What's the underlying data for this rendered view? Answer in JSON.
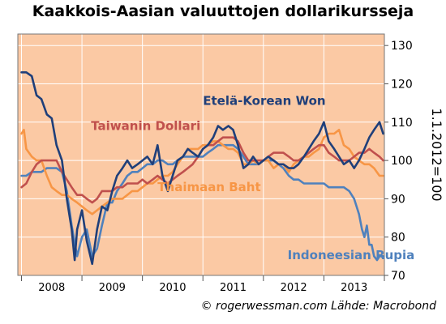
{
  "chart_data": {
    "type": "line",
    "title": "Kaakkois-Aasian valuuttojen dollarikursseja",
    "ylabel": "1.1.2012=100",
    "ylim": [
      70,
      133
    ],
    "xlim": [
      2007.94,
      2014.0
    ],
    "yticks": [
      70,
      80,
      90,
      100,
      110,
      120,
      130
    ],
    "xtick_labels": [
      "2008",
      "2009",
      "2010",
      "2011",
      "2012",
      "2013"
    ],
    "xtick_centers": [
      2008.5,
      2009.5,
      2010.5,
      2011.5,
      2012.5,
      2013.5
    ],
    "grid": true,
    "plot_background": "#fbc9a4",
    "series": [
      {
        "name": "Etelä-Korean Won",
        "color": "#1f3f7a",
        "x": [
          2008.0,
          2008.08,
          2008.17,
          2008.25,
          2008.33,
          2008.42,
          2008.5,
          2008.58,
          2008.67,
          2008.75,
          2008.83,
          2008.88,
          2008.92,
          2009.0,
          2009.08,
          2009.17,
          2009.25,
          2009.33,
          2009.42,
          2009.5,
          2009.58,
          2009.67,
          2009.75,
          2009.83,
          2009.92,
          2010.0,
          2010.08,
          2010.17,
          2010.25,
          2010.33,
          2010.42,
          2010.5,
          2010.58,
          2010.67,
          2010.75,
          2010.83,
          2010.92,
          2011.0,
          2011.08,
          2011.17,
          2011.25,
          2011.33,
          2011.42,
          2011.5,
          2011.58,
          2011.67,
          2011.75,
          2011.83,
          2011.92,
          2012.0,
          2012.08,
          2012.17,
          2012.25,
          2012.33,
          2012.42,
          2012.5,
          2012.58,
          2012.67,
          2012.75,
          2012.83,
          2012.92,
          2013.0,
          2013.08,
          2013.17,
          2013.25,
          2013.33,
          2013.42,
          2013.5,
          2013.58,
          2013.67,
          2013.75,
          2013.83,
          2013.92,
          2013.98
        ],
        "y": [
          123,
          123,
          122,
          117,
          116,
          112,
          111,
          104,
          100,
          90,
          82,
          74,
          82,
          87,
          79,
          73,
          82,
          88,
          87,
          92,
          96,
          98,
          100,
          98,
          99,
          100,
          101,
          99,
          104,
          96,
          92,
          96,
          100,
          101,
          103,
          102,
          101,
          103,
          104,
          106,
          109,
          108,
          109,
          108,
          104,
          98,
          99,
          101,
          99,
          100,
          101,
          100,
          99,
          99,
          98,
          98,
          99,
          101,
          103,
          105,
          107,
          110,
          105,
          103,
          101,
          99,
          100,
          98,
          100,
          103,
          106,
          108,
          110,
          107
        ]
      },
      {
        "name": "Taiwanin Dollari",
        "color": "#c0504d",
        "x": [
          2008.0,
          2008.08,
          2008.17,
          2008.25,
          2008.33,
          2008.42,
          2008.5,
          2008.58,
          2008.67,
          2008.75,
          2008.83,
          2008.92,
          2009.0,
          2009.08,
          2009.17,
          2009.25,
          2009.33,
          2009.42,
          2009.5,
          2009.58,
          2009.67,
          2009.75,
          2009.83,
          2009.92,
          2010.0,
          2010.08,
          2010.17,
          2010.25,
          2010.33,
          2010.42,
          2010.5,
          2010.58,
          2010.67,
          2010.75,
          2010.83,
          2010.92,
          2011.0,
          2011.08,
          2011.17,
          2011.25,
          2011.33,
          2011.42,
          2011.5,
          2011.58,
          2011.67,
          2011.75,
          2011.83,
          2011.92,
          2012.0,
          2012.08,
          2012.17,
          2012.25,
          2012.33,
          2012.42,
          2012.5,
          2012.58,
          2012.67,
          2012.75,
          2012.83,
          2012.92,
          2013.0,
          2013.08,
          2013.17,
          2013.25,
          2013.33,
          2013.42,
          2013.5,
          2013.58,
          2013.67,
          2013.75,
          2013.83,
          2013.92,
          2013.98
        ],
        "y": [
          93,
          94,
          97,
          99,
          100,
          100,
          100,
          100,
          97,
          95,
          93,
          91,
          91,
          90,
          89,
          90,
          92,
          92,
          92,
          93,
          93,
          94,
          94,
          94,
          95,
          94,
          95,
          96,
          95,
          94,
          95,
          96,
          97,
          98,
          99,
          101,
          103,
          104,
          104,
          105,
          106,
          106,
          106,
          105,
          102,
          100,
          100,
          100,
          100,
          101,
          102,
          102,
          102,
          101,
          100,
          100,
          101,
          102,
          103,
          104,
          104,
          102,
          101,
          100,
          100,
          100,
          101,
          102,
          102,
          103,
          102,
          101,
          100
        ]
      },
      {
        "name": "Thaimaan Baht",
        "color": "#f79646",
        "x": [
          2008.0,
          2008.04,
          2008.08,
          2008.17,
          2008.25,
          2008.33,
          2008.42,
          2008.5,
          2008.58,
          2008.67,
          2008.75,
          2008.83,
          2008.92,
          2009.0,
          2009.08,
          2009.17,
          2009.25,
          2009.33,
          2009.42,
          2009.5,
          2009.58,
          2009.67,
          2009.75,
          2009.83,
          2009.92,
          2010.0,
          2010.08,
          2010.17,
          2010.25,
          2010.33,
          2010.42,
          2010.5,
          2010.58,
          2010.67,
          2010.75,
          2010.83,
          2010.92,
          2011.0,
          2011.08,
          2011.17,
          2011.25,
          2011.33,
          2011.42,
          2011.5,
          2011.58,
          2011.67,
          2011.75,
          2011.83,
          2011.92,
          2012.0,
          2012.08,
          2012.17,
          2012.25,
          2012.33,
          2012.42,
          2012.5,
          2012.58,
          2012.67,
          2012.75,
          2012.83,
          2012.92,
          2013.0,
          2013.08,
          2013.17,
          2013.25,
          2013.33,
          2013.42,
          2013.5,
          2013.58,
          2013.67,
          2013.75,
          2013.83,
          2013.92,
          2013.98
        ],
        "y": [
          107,
          108,
          103,
          101,
          100,
          100,
          96,
          93,
          92,
          91,
          91,
          90,
          89,
          88,
          87,
          86,
          87,
          88,
          89,
          90,
          90,
          90,
          91,
          92,
          92,
          93,
          94,
          94,
          95,
          96,
          96,
          97,
          99,
          101,
          103,
          103,
          103,
          104,
          104,
          105,
          105,
          104,
          103,
          103,
          102,
          99,
          99,
          100,
          99,
          100,
          100,
          98,
          99,
          99,
          97,
          99,
          100,
          101,
          101,
          102,
          103,
          106,
          107,
          107,
          108,
          104,
          103,
          101,
          100,
          99,
          99,
          98,
          96,
          96
        ]
      },
      {
        "name": "Indoneesian Rupia",
        "color": "#4f81bd",
        "x": [
          2008.0,
          2008.08,
          2008.17,
          2008.25,
          2008.33,
          2008.42,
          2008.5,
          2008.58,
          2008.67,
          2008.75,
          2008.83,
          2008.92,
          2009.0,
          2009.08,
          2009.17,
          2009.25,
          2009.33,
          2009.42,
          2009.5,
          2009.58,
          2009.67,
          2009.75,
          2009.83,
          2009.92,
          2010.0,
          2010.08,
          2010.17,
          2010.25,
          2010.33,
          2010.42,
          2010.5,
          2010.58,
          2010.67,
          2010.75,
          2010.83,
          2010.92,
          2011.0,
          2011.08,
          2011.17,
          2011.25,
          2011.33,
          2011.42,
          2011.5,
          2011.58,
          2011.67,
          2011.75,
          2011.83,
          2011.92,
          2012.0,
          2012.08,
          2012.17,
          2012.25,
          2012.33,
          2012.42,
          2012.5,
          2012.58,
          2012.67,
          2012.75,
          2012.83,
          2012.92,
          2013.0,
          2013.08,
          2013.17,
          2013.25,
          2013.33,
          2013.42,
          2013.5,
          2013.58,
          2013.63,
          2013.67,
          2013.71,
          2013.75,
          2013.79,
          2013.83,
          2013.88,
          2013.92,
          2013.98
        ],
        "y": [
          96,
          96,
          97,
          97,
          97,
          98,
          98,
          98,
          97,
          92,
          83,
          75,
          80,
          82,
          75,
          77,
          83,
          89,
          89,
          92,
          94,
          96,
          97,
          97,
          98,
          99,
          99,
          100,
          100,
          99,
          99,
          100,
          101,
          101,
          101,
          101,
          101,
          102,
          103,
          104,
          104,
          104,
          104,
          103,
          101,
          99,
          99,
          99,
          100,
          100,
          100,
          99,
          98,
          96,
          95,
          95,
          94,
          94,
          94,
          94,
          94,
          93,
          93,
          93,
          93,
          92,
          90,
          86,
          82,
          80,
          83,
          78,
          78,
          75,
          74,
          75,
          75
        ]
      }
    ],
    "annotations": [
      {
        "text": "Etelä-Korean Won",
        "color": "#1f3f7a",
        "x": 2011.0,
        "y": 114.5
      },
      {
        "text": "Taiwanin Dollari",
        "color": "#c0504d",
        "x": 2009.15,
        "y": 108.0
      },
      {
        "text": "Thaimaan Baht",
        "color": "#f79646",
        "x": 2010.25,
        "y": 92.0
      },
      {
        "text": "Indoneesian Rupia",
        "color": "#4f81bd",
        "x": 2012.4,
        "y": 74.2
      }
    ]
  },
  "credit": "© rogerwessman.com Lähde: Macrobond"
}
